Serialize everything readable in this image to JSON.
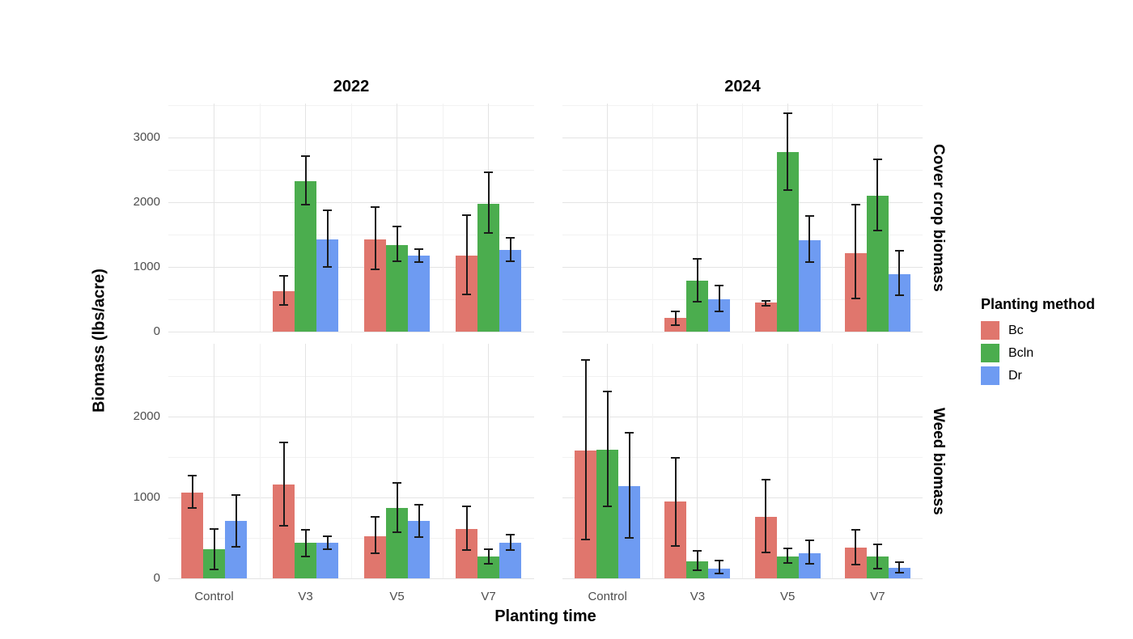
{
  "chart_data": {
    "type": "bar",
    "title": "",
    "xlabel": "Planting time",
    "ylabel": "Biomass (lbs/acre)",
    "categories": [
      "Control",
      "V3",
      "V5",
      "V7"
    ],
    "col_labels": [
      "2022",
      "2024"
    ],
    "row_labels": [
      "Cover crop biomass",
      "Weed biomass"
    ],
    "series_names": [
      "Bc",
      "Bcln",
      "Dr"
    ],
    "colors": {
      "Bc": "#E0766D",
      "Bcln": "#4BAD4E",
      "Dr": "#6E9BF2"
    },
    "grid": "on",
    "legend_position": "right",
    "legend": {
      "title": "Planting method",
      "items": [
        {
          "label": "Bc"
        },
        {
          "label": "Bcln"
        },
        {
          "label": "Dr"
        }
      ]
    },
    "panels": [
      {
        "id": "cover-crop-2022",
        "row": "Cover crop biomass",
        "col": "2022",
        "ylim": [
          0,
          3525
        ],
        "yticks": [
          0,
          1000,
          2000,
          3000
        ],
        "minor_step": 500,
        "series": [
          {
            "name": "Bc",
            "values": [
              null,
              625,
              1430,
              1175
            ],
            "err_lo": [
              null,
              415,
              960,
              570
            ],
            "err_hi": [
              null,
              860,
              1925,
              1800
            ]
          },
          {
            "name": "Bcln",
            "values": [
              null,
              2330,
              1340,
              1980
            ],
            "err_lo": [
              null,
              1965,
              1085,
              1520
            ],
            "err_hi": [
              null,
              2715,
              1625,
              2460
            ]
          },
          {
            "name": "Dr",
            "values": [
              null,
              1425,
              1175,
              1260
            ],
            "err_lo": [
              null,
              1000,
              1075,
              1085
            ],
            "err_hi": [
              null,
              1880,
              1270,
              1450
            ]
          }
        ]
      },
      {
        "id": "cover-crop-2024",
        "row": "Cover crop biomass",
        "col": "2024",
        "ylim": [
          0,
          3525
        ],
        "yticks": [
          0,
          1000,
          2000,
          3000
        ],
        "minor_step": 500,
        "series": [
          {
            "name": "Bc",
            "values": [
              null,
              210,
              450,
              1210
            ],
            "err_lo": [
              null,
              100,
              395,
              510
            ],
            "err_hi": [
              null,
              310,
              480,
              1960
            ]
          },
          {
            "name": "Bcln",
            "values": [
              null,
              790,
              2770,
              2100
            ],
            "err_lo": [
              null,
              460,
              2190,
              1560
            ],
            "err_hi": [
              null,
              1130,
              3375,
              2660
            ]
          },
          {
            "name": "Dr",
            "values": [
              null,
              500,
              1415,
              890
            ],
            "err_lo": [
              null,
              310,
              1080,
              560
            ],
            "err_hi": [
              null,
              710,
              1790,
              1250
            ]
          }
        ]
      },
      {
        "id": "weed-2022",
        "row": "Weed biomass",
        "col": "2022",
        "ylim": [
          0,
          2900
        ],
        "yticks": [
          0,
          1000,
          2000
        ],
        "minor_step": 500,
        "series": [
          {
            "name": "Bc",
            "values": [
              1065,
              1165,
              525,
              615
            ],
            "err_lo": [
              875,
              650,
              310,
              355
            ],
            "err_hi": [
              1275,
              1680,
              760,
              890
            ]
          },
          {
            "name": "Bcln",
            "values": [
              360,
              445,
              875,
              270
            ],
            "err_lo": [
              110,
              270,
              570,
              180
            ],
            "err_hi": [
              615,
              600,
              1180,
              365
            ]
          },
          {
            "name": "Dr",
            "values": [
              715,
              440,
              710,
              445
            ],
            "err_lo": [
              390,
              360,
              510,
              355
            ],
            "err_hi": [
              1030,
              520,
              915,
              540
            ]
          }
        ]
      },
      {
        "id": "weed-2024",
        "row": "Weed biomass",
        "col": "2024",
        "ylim": [
          0,
          2900
        ],
        "yticks": [
          0,
          1000,
          2000
        ],
        "minor_step": 500,
        "series": [
          {
            "name": "Bc",
            "values": [
              1580,
              950,
              760,
              385
            ],
            "err_lo": [
              480,
              400,
              320,
              175
            ],
            "err_hi": [
              2700,
              1490,
              1220,
              605
            ]
          },
          {
            "name": "Bcln",
            "values": [
              1590,
              210,
              270,
              275
            ],
            "err_lo": [
              890,
              100,
              190,
              125
            ],
            "err_hi": [
              2310,
              340,
              370,
              425
            ]
          },
          {
            "name": "Dr",
            "values": [
              1140,
              120,
              310,
              135
            ],
            "err_lo": [
              500,
              60,
              180,
              75
            ],
            "err_hi": [
              1800,
              220,
              470,
              200
            ]
          }
        ]
      }
    ]
  }
}
